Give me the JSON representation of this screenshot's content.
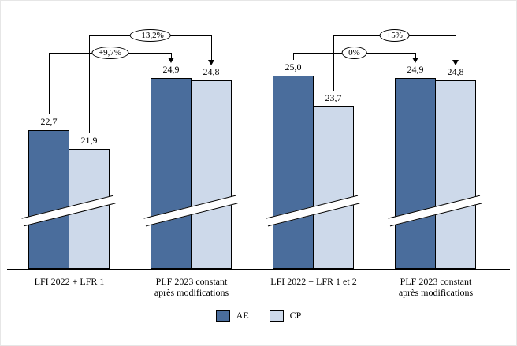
{
  "chart_data": {
    "type": "bar",
    "title": "",
    "categories": [
      {
        "lines": [
          "LFI 2022 + LFR 1"
        ]
      },
      {
        "lines": [
          "PLF 2023 constant",
          "après modifications"
        ]
      },
      {
        "lines": [
          "LFI 2022 + LFR 1 et 2"
        ]
      },
      {
        "lines": [
          "PLF 2023 constant",
          "après modifications"
        ]
      }
    ],
    "series": [
      {
        "name": "AE",
        "color": "#4a6d9c",
        "values": [
          22.7,
          24.9,
          25.0,
          24.9
        ],
        "value_labels": [
          "22,7",
          "24,9",
          "25,0",
          "24,9"
        ]
      },
      {
        "name": "CP",
        "color": "#cdd9ea",
        "values": [
          21.9,
          24.8,
          23.7,
          24.8
        ],
        "value_labels": [
          "21,9",
          "24,8",
          "23,7",
          "24,8"
        ]
      }
    ],
    "annotations": [
      {
        "label": "+9,7%",
        "series": "AE",
        "from": 0,
        "to": 1,
        "level": "low"
      },
      {
        "label": "+13,2%",
        "series": "CP",
        "from": 0,
        "to": 1,
        "level": "high"
      },
      {
        "label": "0%",
        "series": "AE",
        "from": 2,
        "to": 3,
        "level": "low"
      },
      {
        "label": "+5%",
        "series": "CP",
        "from": 2,
        "to": 3,
        "level": "high"
      }
    ],
    "axis_break": true,
    "legend": [
      "AE",
      "CP"
    ],
    "ylim_visible": [
      21.9,
      25.0
    ],
    "colors": {
      "ae": "#4a6d9c",
      "cp": "#cdd9ea",
      "line": "#000000"
    }
  }
}
